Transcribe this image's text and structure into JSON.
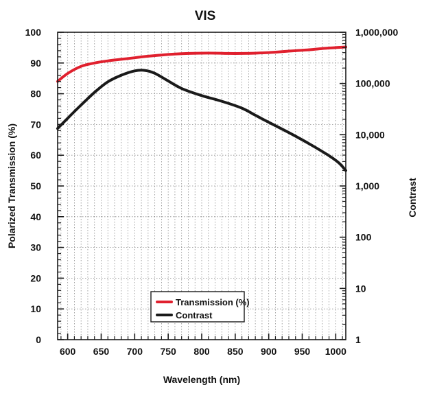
{
  "chart_data": {
    "type": "line",
    "title": "VIS",
    "xlabel": "Wavelength (nm)",
    "ylabel": "Polarized Transmission (%)",
    "y2label": "Contrast",
    "xlim": [
      585,
      1015
    ],
    "ylim": [
      0,
      100
    ],
    "y2lim": [
      1,
      1000000
    ],
    "y2scale": "log",
    "grid": true,
    "legend_position": "bottom-center",
    "x_ticks": [
      "600",
      "650",
      "700",
      "750",
      "800",
      "850",
      "900",
      "950",
      "1000"
    ],
    "y_ticks": [
      "0",
      "10",
      "20",
      "30",
      "40",
      "50",
      "60",
      "70",
      "80",
      "90",
      "100"
    ],
    "y2_ticks": [
      "1",
      "10",
      "100",
      "1,000",
      "10,000",
      "100,000",
      "1,000,000"
    ],
    "series": [
      {
        "name": "Transmission (%)",
        "axis": "left",
        "color": "#e0202e",
        "x": [
          585,
          600,
          620,
          640,
          660,
          680,
          700,
          720,
          740,
          760,
          780,
          800,
          820,
          840,
          860,
          880,
          900,
          920,
          940,
          960,
          980,
          1000,
          1015
        ],
        "y": [
          84,
          86.6,
          88.9,
          90.0,
          90.7,
          91.2,
          91.7,
          92.2,
          92.6,
          92.9,
          93.1,
          93.2,
          93.2,
          93.1,
          93.1,
          93.2,
          93.4,
          93.7,
          94.0,
          94.3,
          94.7,
          95.0,
          95.2
        ]
      },
      {
        "name": "Contrast",
        "axis": "right",
        "color": "#1a1a1a",
        "x": [
          585,
          600,
          620,
          640,
          660,
          680,
          700,
          715,
          730,
          750,
          770,
          800,
          830,
          860,
          880,
          900,
          930,
          960,
          990,
          1005,
          1015
        ],
        "y": [
          13200,
          21000,
          38000,
          67000,
          108000,
          145000,
          176000,
          180000,
          158000,
          112000,
          80000,
          58000,
          45000,
          33000,
          24000,
          17500,
          11000,
          6700,
          3900,
          2800,
          2000
        ]
      }
    ]
  }
}
